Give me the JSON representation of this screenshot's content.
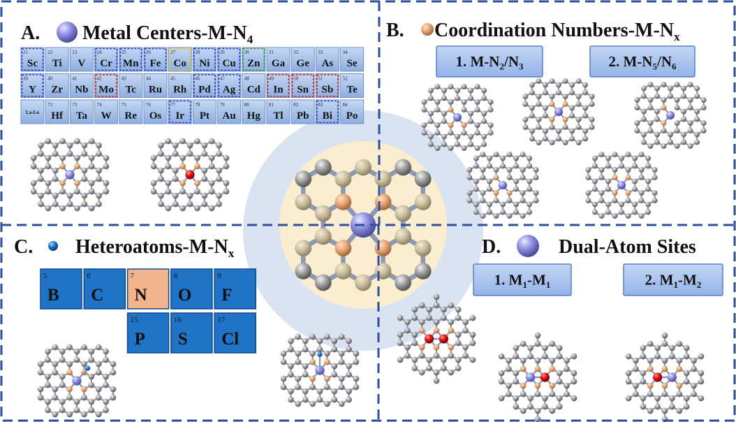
{
  "panel_a": {
    "label": "A.",
    "title": [
      "Metal Centers-M-N",
      "4"
    ],
    "elements": [
      [
        {
          "n": 21,
          "symbol": "Sc",
          "outline": "#2a3fd0"
        },
        {
          "n": 22,
          "symbol": "Ti"
        },
        {
          "n": 23,
          "symbol": "V"
        },
        {
          "n": 24,
          "symbol": "Cr",
          "outline": "#2a3fd0"
        },
        {
          "n": 25,
          "symbol": "Mn",
          "outline": "#2a3fd0"
        },
        {
          "n": 26,
          "symbol": "Fe",
          "outline": "#2a3fd0"
        },
        {
          "n": 27,
          "symbol": "Co",
          "outline": "#e0c820"
        },
        {
          "n": 28,
          "symbol": "Ni",
          "outline": "#2a3fd0"
        },
        {
          "n": 29,
          "symbol": "Cu",
          "outline": "#2a3fd0"
        },
        {
          "n": 30,
          "symbol": "Zn",
          "outline": "#2a9a3a"
        },
        {
          "n": 31,
          "symbol": "Ga"
        },
        {
          "n": 32,
          "symbol": "Ge"
        },
        {
          "n": 33,
          "symbol": "As"
        },
        {
          "n": 34,
          "symbol": "Se"
        }
      ],
      [
        {
          "n": 39,
          "symbol": "Y",
          "outline": "#2a3fd0"
        },
        {
          "n": 40,
          "symbol": "Zr"
        },
        {
          "n": 41,
          "symbol": "Nb"
        },
        {
          "n": 42,
          "symbol": "Mo",
          "outline": "#d02020"
        },
        {
          "n": 43,
          "symbol": "Tc"
        },
        {
          "n": 44,
          "symbol": "Ru"
        },
        {
          "n": 45,
          "symbol": "Rh"
        },
        {
          "n": 46,
          "symbol": "Pd",
          "outline": "#2a3fd0"
        },
        {
          "n": 47,
          "symbol": "Ag",
          "outline": "#2a3fd0"
        },
        {
          "n": 48,
          "symbol": "Cd"
        },
        {
          "n": 49,
          "symbol": "In",
          "outline": "#d02020"
        },
        {
          "n": 50,
          "symbol": "Sn",
          "outline": "#d02020"
        },
        {
          "n": 51,
          "symbol": "Sb",
          "outline": "#d02020"
        },
        {
          "n": 52,
          "symbol": "Te"
        }
      ],
      [
        {
          "symbol": "La-Lu"
        },
        {
          "n": 72,
          "symbol": "Hf"
        },
        {
          "n": 73,
          "symbol": "Ta"
        },
        {
          "n": 74,
          "symbol": "W"
        },
        {
          "n": 75,
          "symbol": "Re"
        },
        {
          "n": 76,
          "symbol": "Os"
        },
        {
          "n": 77,
          "symbol": "Ir",
          "outline": "#2a3fd0"
        },
        {
          "n": 78,
          "symbol": "Pt"
        },
        {
          "n": 79,
          "symbol": "Au"
        },
        {
          "n": 80,
          "symbol": "Hg"
        },
        {
          "n": 81,
          "symbol": "Tl"
        },
        {
          "n": 82,
          "symbol": "Pb"
        },
        {
          "n": 83,
          "symbol": "Bi",
          "outline": "#2a3fd0"
        },
        {
          "n": 84,
          "symbol": "Po"
        }
      ]
    ]
  },
  "panel_b": {
    "label": "B.",
    "title": [
      "Coordination Numbers-M-N",
      "x"
    ],
    "options": [
      [
        "1. M-N",
        "2",
        "/N",
        "3"
      ],
      [
        "2. M-N",
        "5",
        "/N",
        "6"
      ]
    ]
  },
  "panel_c": {
    "label": "C.",
    "title": [
      "Heteroatoms-M-N",
      "x"
    ],
    "elements": [
      [
        {
          "n": 5,
          "symbol": "B",
          "fill": "#1f74c8"
        },
        {
          "n": 6,
          "symbol": "C",
          "fill": "#1f74c8"
        },
        {
          "n": 7,
          "symbol": "N",
          "fill": "#f2b48c"
        },
        {
          "n": 8,
          "symbol": "O",
          "fill": "#1f74c8"
        },
        {
          "n": 9,
          "symbol": "F",
          "fill": "#1f74c8"
        }
      ],
      [
        {
          "n": 15,
          "symbol": "P",
          "fill": "#1f74c8"
        },
        {
          "n": 16,
          "symbol": "S",
          "fill": "#1f74c8"
        },
        {
          "n": 17,
          "symbol": "Cl",
          "fill": "#1f74c8"
        }
      ]
    ]
  },
  "panel_d": {
    "label": "D.",
    "title": [
      "Dual-Atom Sites"
    ],
    "options": [
      [
        "1. M",
        "1",
        "-M",
        "1"
      ],
      [
        "2. M",
        "1",
        "-M",
        "2"
      ]
    ]
  }
}
